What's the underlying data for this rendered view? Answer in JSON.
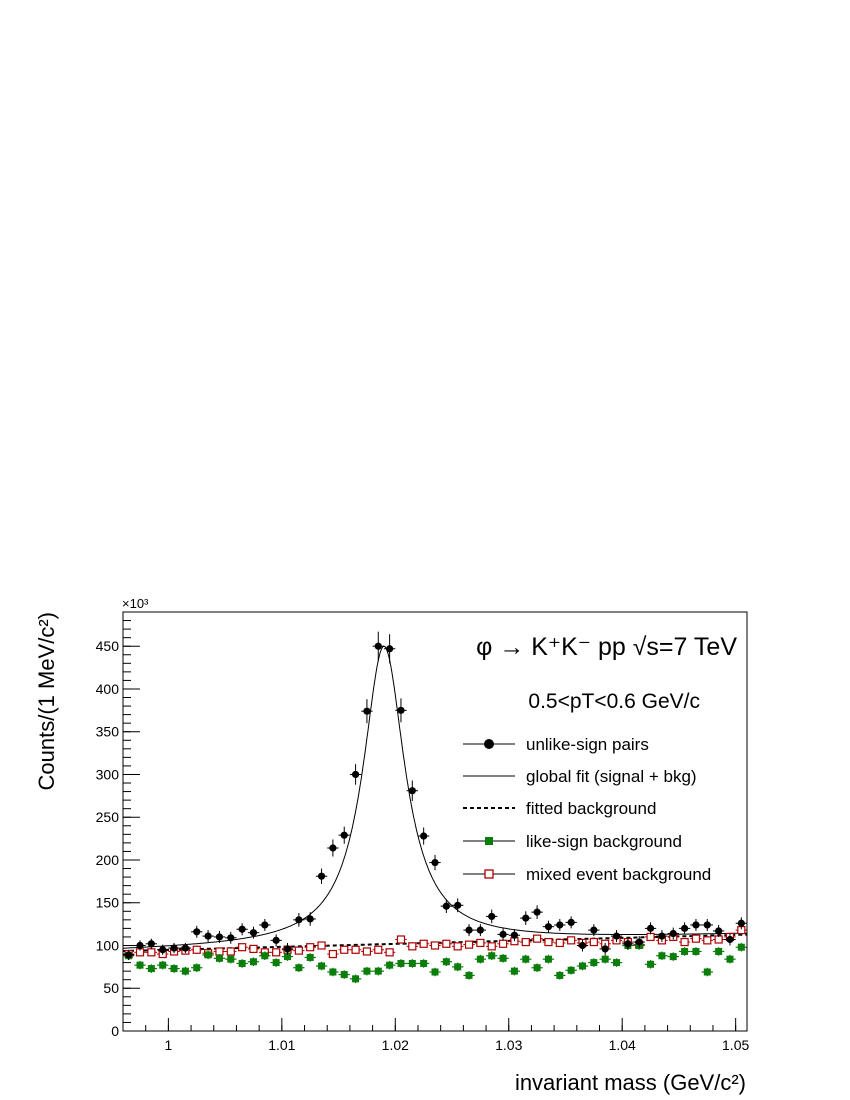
{
  "chart_data": {
    "type": "scatter",
    "xlabel": "invariant mass (GeV/c²)",
    "ylabel": "Counts/(1 MeV/c²)",
    "y_multiplier": "×10³",
    "xlim": [
      0.996,
      1.051
    ],
    "ylim": [
      0,
      490
    ],
    "x_ticks": [
      1,
      1.01,
      1.02,
      1.03,
      1.04,
      1.05
    ],
    "x_tick_labels": [
      "1",
      "1.01",
      "1.02",
      "1.03",
      "1.04",
      "1.05"
    ],
    "y_ticks": [
      0,
      50,
      100,
      150,
      200,
      250,
      300,
      350,
      400,
      450
    ],
    "y_tick_labels": [
      "0",
      "50",
      "100",
      "150",
      "200",
      "250",
      "300",
      "350",
      "400",
      "450"
    ],
    "grid": false,
    "legend_position": "right",
    "annotations": {
      "title_line": "φ → K⁺K⁻    pp  √s=7 TeV",
      "pt_line": "0.5<pT<0.6 GeV/c"
    },
    "x": [
      0.9965,
      0.9975,
      0.9985,
      0.9995,
      1.0005,
      1.0015,
      1.0025,
      1.0035,
      1.0045,
      1.0055,
      1.0065,
      1.0075,
      1.0085,
      1.0095,
      1.0105,
      1.0115,
      1.0125,
      1.0135,
      1.0145,
      1.0155,
      1.0165,
      1.0175,
      1.0185,
      1.0195,
      1.0205,
      1.0215,
      1.0225,
      1.0235,
      1.0245,
      1.0255,
      1.0265,
      1.0275,
      1.0285,
      1.0295,
      1.0305,
      1.0315,
      1.0325,
      1.0335,
      1.0345,
      1.0355,
      1.0365,
      1.0375,
      1.0385,
      1.0395,
      1.0405,
      1.0415,
      1.0425,
      1.0435,
      1.0445,
      1.0455,
      1.0465,
      1.0475,
      1.0485,
      1.0495,
      1.0505
    ],
    "series": [
      {
        "name": "unlike-sign pairs",
        "marker": "filled-circle",
        "color": "#000000",
        "values": [
          89,
          100,
          102,
          95,
          97,
          97,
          116,
          111,
          110,
          109,
          119,
          115,
          124,
          106,
          96,
          130,
          131,
          181,
          214,
          229,
          300,
          374,
          450,
          447,
          375,
          281,
          228,
          197,
          146,
          147,
          118,
          118,
          134,
          113,
          112,
          132,
          139,
          122,
          124,
          127,
          100,
          118,
          96,
          111,
          102,
          104,
          120,
          111,
          114,
          120,
          124,
          124,
          117,
          107,
          126
        ],
        "errors": [
          6,
          6,
          6,
          6,
          6,
          6,
          7,
          7,
          7,
          7,
          7,
          7,
          7,
          7,
          7,
          8,
          8,
          9,
          10,
          10,
          12,
          14,
          17,
          17,
          14,
          12,
          10,
          9,
          8,
          8,
          7,
          7,
          8,
          7,
          7,
          8,
          8,
          7,
          7,
          7,
          7,
          7,
          7,
          7,
          7,
          7,
          7,
          7,
          7,
          7,
          7,
          7,
          7,
          7,
          7
        ]
      },
      {
        "name": "like-sign background",
        "marker": "filled-square",
        "color": "#0a7d0a",
        "values": [
          88,
          77,
          73,
          77,
          73,
          70,
          74,
          89,
          85,
          84,
          79,
          81,
          88,
          80,
          87,
          74,
          86,
          76,
          69,
          66,
          61,
          70,
          70,
          77,
          79,
          79,
          79,
          69,
          81,
          75,
          65,
          84,
          88,
          85,
          70,
          84,
          74,
          84,
          65,
          71,
          76,
          80,
          84,
          80,
          100,
          100,
          78,
          88,
          87,
          93,
          93,
          69,
          93,
          84,
          98
        ],
        "errors": [
          5,
          5,
          5,
          5,
          5,
          5,
          5,
          5,
          5,
          5,
          5,
          5,
          5,
          5,
          5,
          5,
          5,
          5,
          5,
          5,
          5,
          5,
          5,
          5,
          5,
          5,
          5,
          5,
          5,
          5,
          5,
          5,
          5,
          5,
          5,
          5,
          5,
          5,
          5,
          5,
          5,
          5,
          5,
          5,
          5,
          5,
          5,
          5,
          5,
          5,
          5,
          5,
          5,
          5,
          5
        ]
      },
      {
        "name": "mixed event background",
        "marker": "open-square",
        "color": "#b00000",
        "values": [
          90,
          92,
          92,
          90,
          93,
          94,
          95,
          91,
          93,
          93,
          98,
          96,
          92,
          92,
          95,
          94,
          98,
          100,
          90,
          95,
          95,
          93,
          95,
          92,
          107,
          99,
          102,
          100,
          102,
          99,
          101,
          103,
          99,
          102,
          105,
          104,
          108,
          104,
          103,
          106,
          103,
          104,
          102,
          106,
          104,
          101,
          110,
          106,
          110,
          104,
          108,
          106,
          107,
          110,
          118
        ]
      },
      {
        "name": "global fit (signal + bkg)",
        "line": "solid",
        "peak_mass": 1.019,
        "peak_value": 450,
        "width": 0.0045,
        "background": [
          93.5,
          0.35
        ]
      },
      {
        "name": "fitted background",
        "line": "dashed",
        "background": [
          93.5,
          0.35
        ]
      }
    ]
  }
}
